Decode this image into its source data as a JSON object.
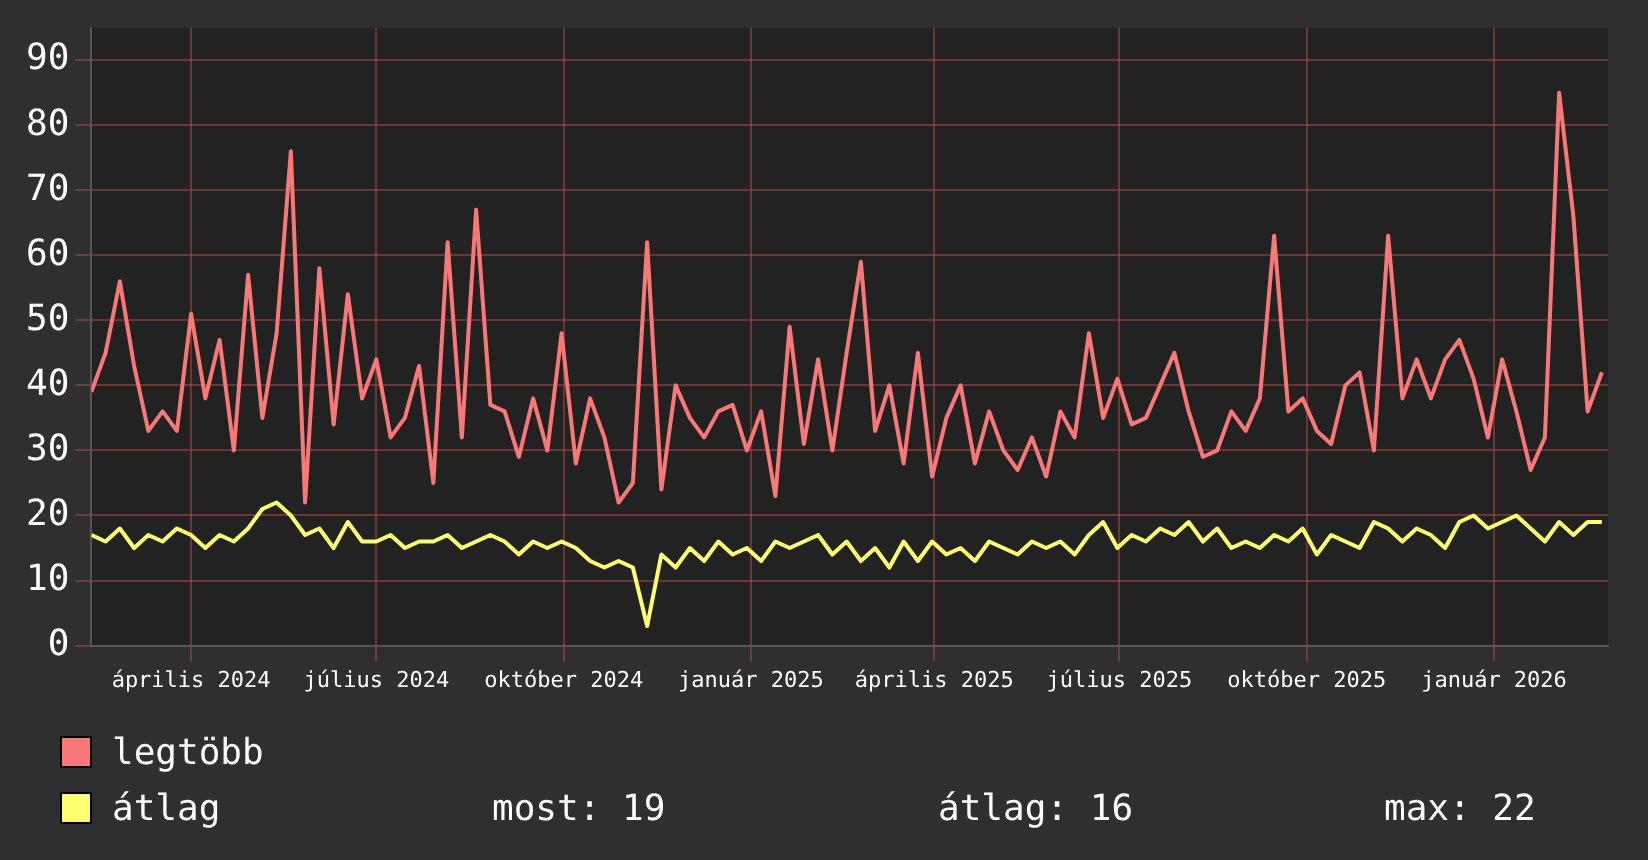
{
  "chart_data": {
    "type": "line",
    "legend": "bottom left",
    "grid": true,
    "marker": "none",
    "line_style": "solid",
    "x": [
      "2024-02-26",
      "2024-03-04",
      "2024-03-11",
      "2024-03-18",
      "2024-03-25",
      "2024-04-01",
      "2024-04-08",
      "2024-04-15",
      "2024-04-22",
      "2024-04-29",
      "2024-05-06",
      "2024-05-13",
      "2024-05-20",
      "2024-05-27",
      "2024-06-03",
      "2024-06-10",
      "2024-06-17",
      "2024-06-24",
      "2024-07-01",
      "2024-07-08",
      "2024-07-15",
      "2024-07-22",
      "2024-07-29",
      "2024-08-05",
      "2024-08-12",
      "2024-08-19",
      "2024-08-26",
      "2024-09-02",
      "2024-09-09",
      "2024-09-16",
      "2024-09-23",
      "2024-09-30",
      "2024-10-07",
      "2024-10-14",
      "2024-10-21",
      "2024-10-28",
      "2024-11-04",
      "2024-11-11",
      "2024-11-18",
      "2024-11-25",
      "2024-12-02",
      "2024-12-09",
      "2024-12-16",
      "2024-12-23",
      "2024-12-30",
      "2025-01-06",
      "2025-01-13",
      "2025-01-20",
      "2025-01-27",
      "2025-02-03",
      "2025-02-10",
      "2025-02-17",
      "2025-02-24",
      "2025-03-03",
      "2025-03-10",
      "2025-03-17",
      "2025-03-24",
      "2025-03-31",
      "2025-04-07",
      "2025-04-14",
      "2025-04-21",
      "2025-04-28",
      "2025-05-05",
      "2025-05-12",
      "2025-05-19",
      "2025-05-26",
      "2025-06-02",
      "2025-06-09",
      "2025-06-16",
      "2025-06-23",
      "2025-06-30",
      "2025-07-07",
      "2025-07-14",
      "2025-07-21",
      "2025-07-28",
      "2025-08-04",
      "2025-08-11",
      "2025-08-18",
      "2025-08-25",
      "2025-09-01",
      "2025-09-08",
      "2025-09-15",
      "2025-09-22",
      "2025-09-29",
      "2025-10-06",
      "2025-10-13",
      "2025-10-20",
      "2025-10-27",
      "2025-11-03",
      "2025-11-10",
      "2025-11-17",
      "2025-11-24",
      "2025-12-01",
      "2025-12-08",
      "2025-12-15",
      "2025-12-22",
      "2025-12-29",
      "2026-01-05",
      "2026-01-12",
      "2026-01-19",
      "2026-01-26",
      "2026-02-02",
      "2026-02-09",
      "2026-02-16",
      "2026-02-23",
      "2026-03-02",
      "2026-03-09"
    ],
    "xlim": [
      "2024-02-26",
      "2026-03-12"
    ],
    "xticks": [
      {
        "value": "2024-04-15",
        "label": "április 2024"
      },
      {
        "value": "2024-07-15",
        "label": "július 2024"
      },
      {
        "value": "2024-10-15",
        "label": "október 2024"
      },
      {
        "value": "2025-01-15",
        "label": "január 2025"
      },
      {
        "value": "2025-04-15",
        "label": "április 2025"
      },
      {
        "value": "2025-07-15",
        "label": "július 2025"
      },
      {
        "value": "2025-10-15",
        "label": "október 2025"
      },
      {
        "value": "2026-01-15",
        "label": "január 2026"
      }
    ],
    "ylim": [
      0,
      95
    ],
    "yticks": [
      0,
      10,
      20,
      30,
      40,
      50,
      60,
      70,
      80,
      90
    ],
    "series": [
      {
        "name": "legtöbb",
        "color": "#f87878",
        "values": [
          39,
          45,
          56,
          43,
          33,
          36,
          33,
          51,
          38,
          47,
          30,
          57,
          35,
          48,
          76,
          22,
          58,
          34,
          54,
          38,
          44,
          32,
          35,
          43,
          25,
          62,
          32,
          67,
          37,
          36,
          29,
          38,
          30,
          48,
          28,
          38,
          32,
          22,
          25,
          62,
          24,
          40,
          35,
          32,
          36,
          37,
          30,
          36,
          23,
          49,
          31,
          44,
          30,
          45,
          59,
          33,
          40,
          28,
          45,
          26,
          35,
          40,
          28,
          36,
          30,
          27,
          32,
          26,
          36,
          32,
          48,
          35,
          41,
          34,
          35,
          40,
          45,
          36,
          29,
          30,
          36,
          33,
          38,
          63,
          36,
          38,
          33,
          31,
          40,
          42,
          30,
          63,
          38,
          44,
          38,
          44,
          47,
          41,
          32,
          44,
          36,
          27,
          32,
          85,
          66,
          36,
          42
        ]
      },
      {
        "name": "átlag",
        "color": "#ffff70",
        "values": [
          17,
          16,
          18,
          15,
          17,
          16,
          18,
          17,
          15,
          17,
          16,
          18,
          21,
          22,
          20,
          17,
          18,
          15,
          19,
          16,
          16,
          17,
          15,
          16,
          16,
          17,
          15,
          16,
          17,
          16,
          14,
          16,
          15,
          16,
          15,
          13,
          12,
          13,
          12,
          3,
          14,
          12,
          15,
          13,
          16,
          14,
          15,
          13,
          16,
          15,
          16,
          17,
          14,
          16,
          13,
          15,
          12,
          16,
          13,
          16,
          14,
          15,
          13,
          16,
          15,
          14,
          16,
          15,
          16,
          14,
          17,
          19,
          15,
          17,
          16,
          18,
          17,
          19,
          16,
          18,
          15,
          16,
          15,
          17,
          16,
          18,
          14,
          17,
          16,
          15,
          19,
          18,
          16,
          18,
          17,
          15,
          19,
          20,
          18,
          19,
          20,
          18,
          16,
          19,
          17,
          19,
          19
        ]
      }
    ],
    "annotations": [
      "most: 19",
      "átlag: 16",
      "max: 22"
    ]
  }
}
